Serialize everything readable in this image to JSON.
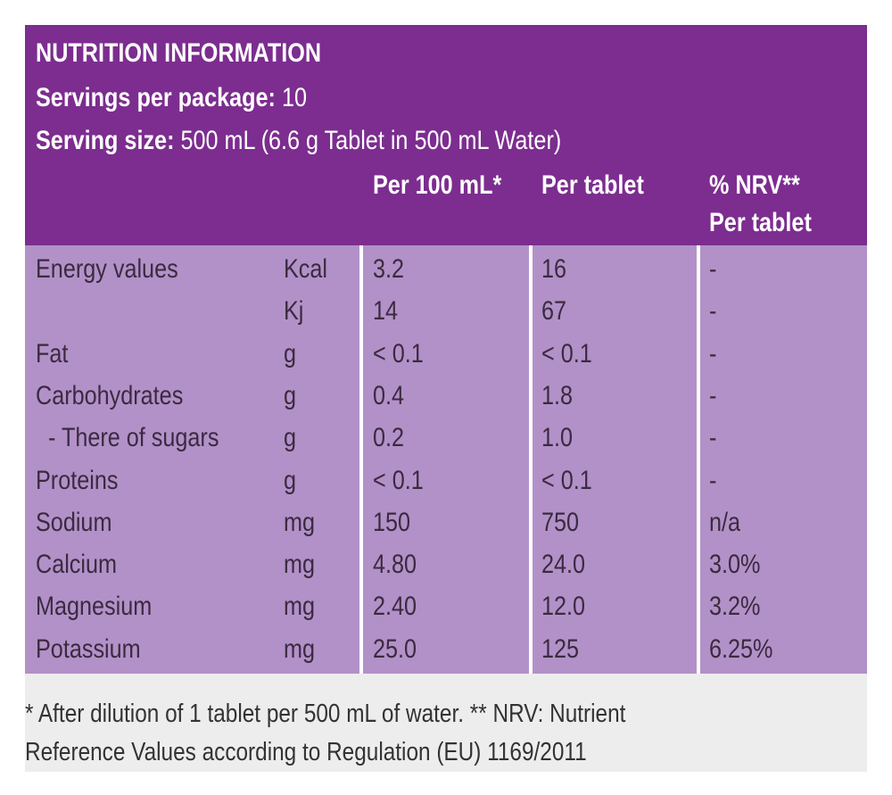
{
  "header": {
    "title": "NUTRITION INFORMATION",
    "servings_label": "Servings per package:",
    "servings_value": "10",
    "serving_size_label": "Serving size:",
    "serving_size_value": "500 mL (6.6 g Tablet in 500 mL Water)"
  },
  "table": {
    "columns": [
      "Per 100 mL*",
      "Per tablet",
      [
        "% NRV**",
        "Per tablet"
      ]
    ],
    "rows": [
      [
        "Energy values",
        "Kcal",
        "3.2",
        "16",
        "-"
      ],
      [
        null,
        "Kj",
        "14",
        "67",
        "-"
      ],
      [
        "Fat",
        "g",
        "< 0.1",
        "< 0.1",
        "-"
      ],
      [
        "Carbohydrates",
        "g",
        "0.4",
        "1.8",
        "-"
      ],
      [
        "  - There of sugars",
        "g",
        "0.2",
        "1.0",
        "-"
      ],
      [
        "Proteins",
        "g",
        "< 0.1",
        "< 0.1",
        "-"
      ],
      [
        "Sodium",
        "mg",
        "150",
        "750",
        "n/a"
      ],
      [
        "Calcium",
        "mg",
        "4.80",
        "24.0",
        "3.0%"
      ],
      [
        "Magnesium",
        "mg",
        "2.40",
        "12.0",
        "3.2%"
      ],
      [
        "Potassium",
        "mg",
        "25.0",
        "125",
        "6.25%"
      ]
    ]
  },
  "footnote": [
    "* After dilution of 1 tablet per 500 mL of water. ** NRV: Nutrient",
    "Reference Values according to Regulation (EU) 1169/2011"
  ]
}
